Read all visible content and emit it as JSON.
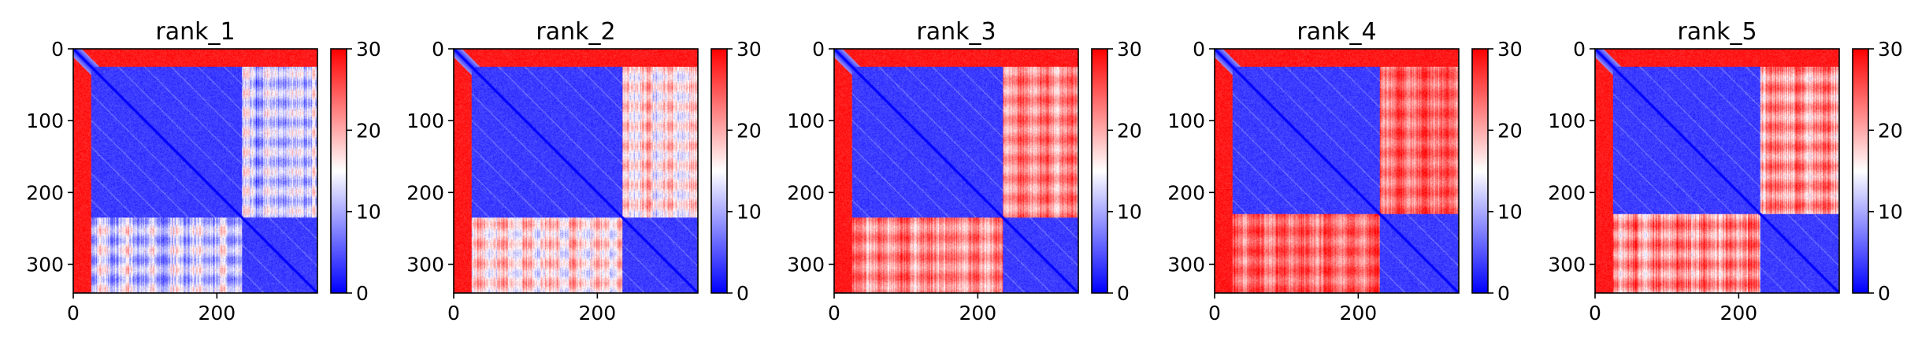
{
  "chart_data": [
    {
      "type": "heatmap",
      "title": "rank_1",
      "n": 340,
      "xticks": [
        0,
        200
      ],
      "yticks": [
        0,
        100,
        200,
        300
      ],
      "colorbar": {
        "min": 0,
        "max": 30,
        "ticks": [
          0,
          10,
          20,
          30
        ],
        "colors": [
          "#0000ff",
          "#ffffff",
          "#ff0000"
        ]
      },
      "domains": [
        [
          0,
          25
        ],
        [
          25,
          235
        ],
        [
          235,
          340
        ]
      ],
      "inter_value": 12,
      "stripe_strength": 9
    },
    {
      "type": "heatmap",
      "title": "rank_2",
      "n": 340,
      "xticks": [
        0,
        200
      ],
      "yticks": [
        0,
        100,
        200,
        300
      ],
      "colorbar": {
        "min": 0,
        "max": 30,
        "ticks": [
          0,
          10,
          20,
          30
        ],
        "colors": [
          "#0000ff",
          "#ffffff",
          "#ff0000"
        ]
      },
      "domains": [
        [
          0,
          25
        ],
        [
          25,
          235
        ],
        [
          235,
          340
        ]
      ],
      "inter_value": 17,
      "stripe_strength": 8
    },
    {
      "type": "heatmap",
      "title": "rank_3",
      "n": 340,
      "xticks": [
        0,
        200
      ],
      "yticks": [
        0,
        100,
        200,
        300
      ],
      "colorbar": {
        "min": 0,
        "max": 30,
        "ticks": [
          0,
          10,
          20,
          30
        ],
        "colors": [
          "#0000ff",
          "#ffffff",
          "#ff0000"
        ]
      },
      "domains": [
        [
          0,
          25
        ],
        [
          25,
          235
        ],
        [
          235,
          340
        ]
      ],
      "inter_value": 22,
      "stripe_strength": 7
    },
    {
      "type": "heatmap",
      "title": "rank_4",
      "n": 340,
      "xticks": [
        0,
        200
      ],
      "yticks": [
        0,
        100,
        200,
        300
      ],
      "colorbar": {
        "min": 0,
        "max": 30,
        "ticks": [
          0,
          10,
          20,
          30
        ],
        "colors": [
          "#0000ff",
          "#ffffff",
          "#ff0000"
        ]
      },
      "domains": [
        [
          0,
          25
        ],
        [
          25,
          230
        ],
        [
          230,
          340
        ]
      ],
      "inter_value": 24,
      "stripe_strength": 6
    },
    {
      "type": "heatmap",
      "title": "rank_5",
      "n": 340,
      "xticks": [
        0,
        200
      ],
      "yticks": [
        0,
        100,
        200,
        300
      ],
      "colorbar": {
        "min": 0,
        "max": 30,
        "ticks": [
          0,
          10,
          20,
          30
        ],
        "colors": [
          "#0000ff",
          "#ffffff",
          "#ff0000"
        ]
      },
      "domains": [
        [
          0,
          25
        ],
        [
          25,
          230
        ],
        [
          230,
          340
        ]
      ],
      "inter_value": 22,
      "stripe_strength": 9
    }
  ]
}
